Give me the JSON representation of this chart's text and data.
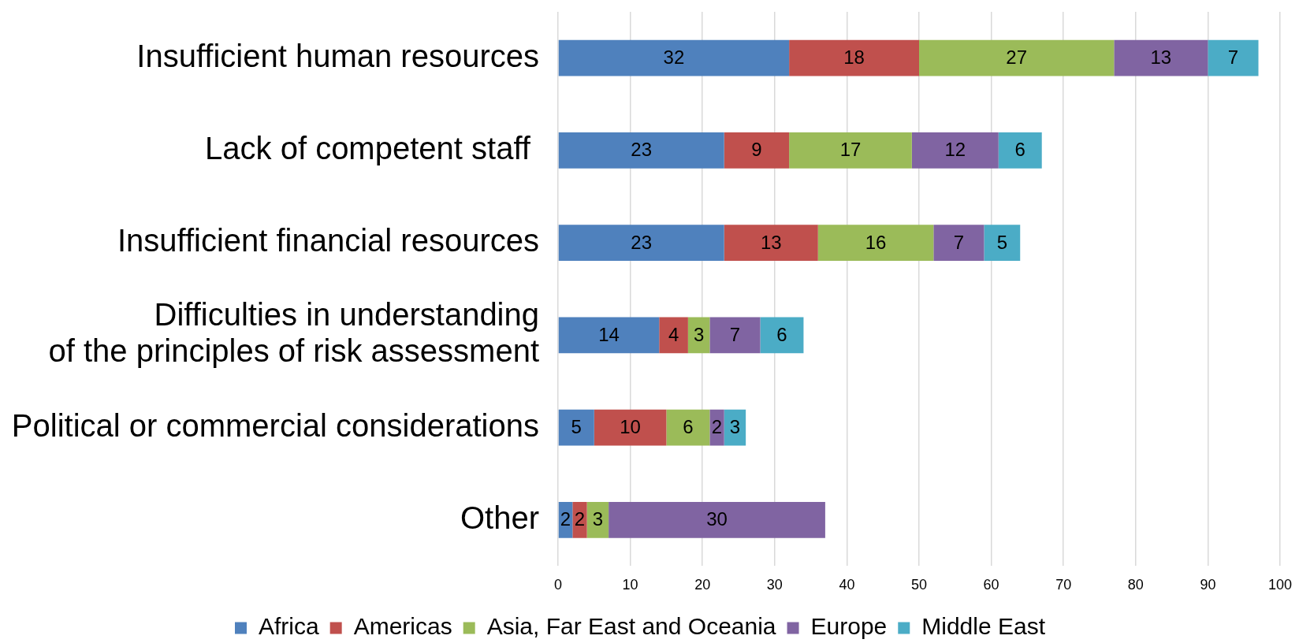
{
  "chart_data": {
    "type": "bar",
    "orientation": "horizontal",
    "stacked": true,
    "categories": [
      "Insufficient human resources",
      "Lack of competent staff ",
      "Insufficient financial resources",
      "Difficulties in understanding\nof the principles of risk assessment",
      "Political or commercial considerations",
      "Other"
    ],
    "series": [
      {
        "name": "Africa",
        "color": "#4f81bd",
        "values": [
          32,
          23,
          23,
          14,
          5,
          2
        ]
      },
      {
        "name": "Americas",
        "color": "#c0504d",
        "values": [
          18,
          9,
          13,
          4,
          10,
          2
        ]
      },
      {
        "name": "Asia, Far East and Oceania",
        "color": "#9bbb59",
        "values": [
          27,
          17,
          16,
          3,
          6,
          3
        ]
      },
      {
        "name": "Europe",
        "color": "#8064a2",
        "values": [
          13,
          12,
          7,
          7,
          2,
          30
        ]
      },
      {
        "name": "Middle East",
        "color": "#4bacc6",
        "values": [
          7,
          6,
          5,
          6,
          3,
          null
        ]
      }
    ],
    "xlim": [
      0,
      100
    ],
    "xticks": [
      0,
      10,
      20,
      30,
      40,
      50,
      60,
      70,
      80,
      90,
      100
    ],
    "grid": "x",
    "legend": "bottom",
    "data_labels": true
  }
}
